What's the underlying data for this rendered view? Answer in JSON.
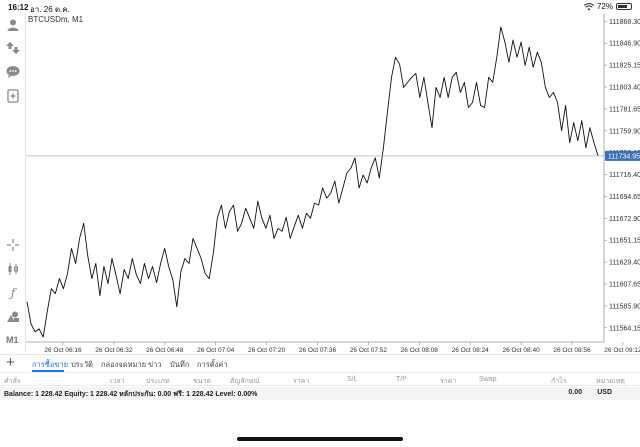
{
  "status_bar": {
    "time": "16:12",
    "date": "อา. 26 ต.ค.",
    "battery": "72%",
    "battery_level": 0.72
  },
  "sidebar": {
    "items": [
      {
        "icon": "user-icon"
      },
      {
        "icon": "trade-arrows-icon"
      },
      {
        "icon": "chat-icon"
      },
      {
        "icon": "new-order-icon"
      },
      {
        "icon": "crosshair-icon"
      },
      {
        "icon": "candlestick-icon"
      },
      {
        "icon": "indicator-f-icon"
      },
      {
        "icon": "objects-icon"
      }
    ],
    "timeframe": "M1"
  },
  "chart": {
    "symbol_label": "BTCUSDm, M1",
    "line_color": "#111111",
    "current_price_bg": "#3d6fb6",
    "current_price_label": "111734.95"
  },
  "chart_data": {
    "type": "line",
    "title": "BTCUSDm, M1",
    "xlabel": "",
    "ylabel": "",
    "ylim": [
      111550,
      111868
    ],
    "y_ticks": [
      "111868.30",
      "111846.90",
      "111825.15",
      "111803.40",
      "111781.65",
      "111759.90",
      "111738.15",
      "111716.40",
      "111694.65",
      "111672.90",
      "111651.15",
      "111629.40",
      "111607.65",
      "111585.90",
      "111564.15"
    ],
    "x_ticks": [
      "26 Oct 06:16",
      "26 Oct 06:32",
      "26 Oct 06:48",
      "26 Oct 07:04",
      "26 Oct 07:20",
      "26 Oct 07:36",
      "26 Oct 07:52",
      "26 Oct 08:08",
      "26 Oct 08:24",
      "26 Oct 08:40",
      "26 Oct 08:56",
      "26 Oct 09:12"
    ],
    "current_price": 111734.95,
    "series": [
      {
        "values": [
          111590,
          111568,
          111560,
          111563,
          111555,
          111580,
          111603,
          111598,
          111613,
          111603,
          111618,
          111643,
          111628,
          111653,
          111668,
          111636,
          111613,
          111628,
          111596,
          111625,
          111608,
          111633,
          111616,
          111598,
          111622,
          111613,
          111633,
          111617,
          111608,
          111628,
          111613,
          111625,
          111609,
          111628,
          111643,
          111625,
          111612,
          111585,
          111620,
          111633,
          111628,
          111653,
          111643,
          111633,
          111618,
          111613,
          111638,
          111673,
          111686,
          111663,
          111680,
          111686,
          111660,
          111668,
          111683,
          111673,
          111663,
          111690,
          111673,
          111663,
          111676,
          111653,
          111663,
          111660,
          111674,
          111653,
          111665,
          111676,
          111663,
          111678,
          111673,
          111688,
          111686,
          111703,
          111693,
          111698,
          111710,
          111688,
          111703,
          111718,
          111723,
          111733,
          111703,
          111716,
          111708,
          111723,
          111733,
          111713,
          111743,
          111778,
          111813,
          111833,
          111826,
          111803,
          111808,
          111813,
          111817,
          111793,
          111813,
          111788,
          111763,
          111803,
          111793,
          111813,
          111793,
          111813,
          111818,
          111798,
          111808,
          111783,
          111788,
          111808,
          111785,
          111783,
          111813,
          111808,
          111833,
          111863,
          111848,
          111828,
          111850,
          111833,
          111848,
          111825,
          111843,
          111823,
          111838,
          111828,
          111803,
          111793,
          111798,
          111788,
          111760,
          111785,
          111748,
          111768,
          111750,
          111770,
          111743,
          111763,
          111748,
          111735
        ]
      }
    ]
  },
  "tabs": [
    {
      "label": "การซื้อขาย",
      "active": true
    },
    {
      "label": "ประวัติ",
      "active": false
    },
    {
      "label": "กล่องจดหมาย",
      "active": false
    },
    {
      "label": "ข่าว",
      "active": false
    },
    {
      "label": "บันทึก",
      "active": false
    },
    {
      "label": "การตั้งค่า",
      "active": false
    }
  ],
  "trade_columns": [
    "คำสั่ง",
    "เวลา",
    "ประเภท",
    "ขนาด",
    "สัญลักษณ์",
    "ราคา",
    "S/L",
    "T/P",
    "ราคา",
    "Swap",
    "กำไร",
    "หมายเหตุ"
  ],
  "balance": {
    "summary": "Balance: 1 228.42 Equity: 1 228.42 หลักประกัน: 0.00 ฟรี: 1 228.42 Level: 0.00%",
    "profit": "0.00",
    "currency": "USD"
  }
}
